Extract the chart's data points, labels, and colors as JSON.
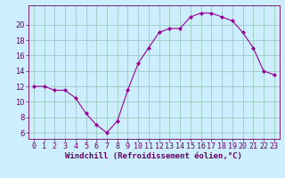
{
  "x": [
    0,
    1,
    2,
    3,
    4,
    5,
    6,
    7,
    8,
    9,
    10,
    11,
    12,
    13,
    14,
    15,
    16,
    17,
    18,
    19,
    20,
    21,
    22,
    23
  ],
  "y": [
    12,
    12,
    11.5,
    11.5,
    10.5,
    8.5,
    7,
    6,
    7.5,
    11.5,
    15,
    17,
    19,
    19.5,
    19.5,
    21,
    21.5,
    21.5,
    21,
    20.5,
    19,
    17,
    14,
    13.5
  ],
  "line_color": "#990099",
  "marker": "D",
  "marker_size": 2,
  "bg_color": "#cceeff",
  "grid_color": "#99ccbb",
  "xlabel": "Windchill (Refroidissement éolien,°C)",
  "xlabel_color": "#660066",
  "xlabel_fontsize": 6.5,
  "tick_color": "#660066",
  "tick_fontsize": 6,
  "yticks": [
    6,
    8,
    10,
    12,
    14,
    16,
    18,
    20
  ],
  "ylim": [
    5.2,
    22.5
  ],
  "xlim": [
    -0.5,
    23.5
  ],
  "xtick_labels": [
    "0",
    "1",
    "2",
    "3",
    "4",
    "5",
    "6",
    "7",
    "8",
    "9",
    "10",
    "11",
    "12",
    "13",
    "14",
    "15",
    "16",
    "17",
    "18",
    "19",
    "20",
    "21",
    "22",
    "23"
  ]
}
